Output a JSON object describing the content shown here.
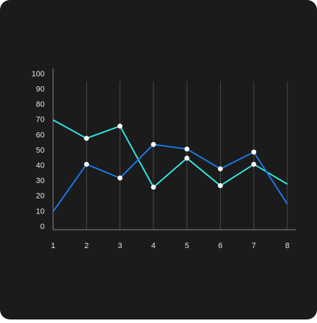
{
  "chart_data": {
    "type": "line",
    "x": [
      1,
      2,
      3,
      4,
      5,
      6,
      7,
      8
    ],
    "series": [
      {
        "color": "#2ee8e0",
        "values": [
          70,
          58,
          66,
          26,
          45,
          27,
          41,
          28
        ]
      },
      {
        "color": "#1a78e8",
        "values": [
          10,
          41,
          32,
          54,
          51,
          38,
          49,
          15
        ]
      }
    ],
    "xlim": [
      1,
      8
    ],
    "xticks": [
      1,
      2,
      3,
      4,
      5,
      6,
      7,
      8
    ],
    "ylim": [
      0,
      100
    ],
    "yticks": [
      0,
      10,
      20,
      30,
      40,
      50,
      60,
      70,
      80,
      90,
      100
    ],
    "grid": "x",
    "markers_at_ends": false,
    "marker_color": "#ffffff"
  }
}
